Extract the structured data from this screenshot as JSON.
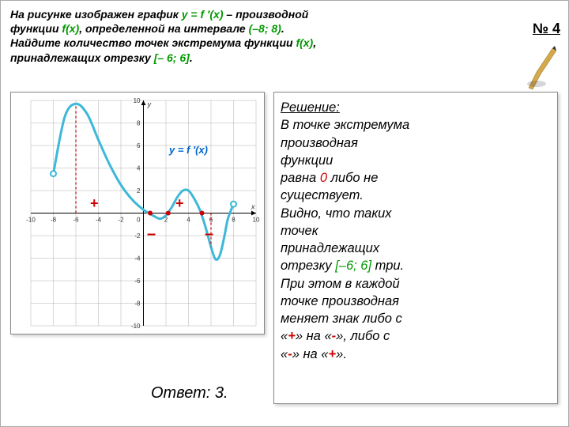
{
  "problem": {
    "line1_a": "На рисунке изображен график ",
    "line1_fn": "y = f ′(x)",
    "line1_b": " – производной",
    "line2_a": "функции  ",
    "line2_fn": "f(x)",
    "line2_b": ", определенной на интервале ",
    "line2_int": "(–8; 8)",
    "line2_c": ".",
    "line3_a": "Найдите количество точек экстремума функции ",
    "line3_fn": "f(x)",
    "line3_b": ",",
    "line4_a": "принадлежащих отрезку ",
    "line4_int": "[– 6; 6]",
    "line4_b": "."
  },
  "badge": "№ 4",
  "chart_func": "y = f ′(x)",
  "signs": {
    "p1": "+",
    "p2": "+",
    "m1": "–",
    "m2": "–"
  },
  "solution": {
    "title": "Решение:",
    "l1": "В точке экстремума",
    "l2": "производная",
    "l3": "функции",
    "l4a": "равна ",
    "l4z": "0",
    "l4b": " либо не",
    "l5": "существует.",
    "l6": "Видно, что таких",
    "l7": "точек",
    "l8": "принадлежащих",
    "l9a": "отрезку ",
    "l9i": "[–6; 6]",
    "l9b": " три.",
    "l10": "При этом в каждой",
    "l11": "точке производная",
    "l12": "меняет знак либо с",
    "l13a": "«",
    "l13p": "+",
    "l13b": "»",
    "l13c": " на «",
    "l13m": "-",
    "l13d": "»",
    "l13e": ", либо с",
    "l14a": "«",
    "l14m": "-",
    "l14b": "»",
    "l14c": " на «",
    "l14p": "+",
    "l14d": "»",
    "l14e": "."
  },
  "answer": "Ответ: 3.",
  "chart": {
    "xlim": [
      -10,
      10
    ],
    "ylim": [
      -10,
      10
    ],
    "xticks": [
      -10,
      -8,
      -6,
      -4,
      -2,
      0,
      2,
      4,
      6,
      8,
      10
    ],
    "yticks": [
      -10,
      -8,
      -6,
      -4,
      -2,
      0,
      2,
      4,
      6,
      8,
      10
    ],
    "grid_color": "#b0b0b0",
    "axis_color": "#000000",
    "curve_color": "#3db8d8",
    "curve_width": 3,
    "endpoint_color": "#3db8d8",
    "zero_point_color": "#cc0000",
    "dash_color": "#cc0000",
    "curve_points": [
      [
        -8,
        3.5
      ],
      [
        -7,
        8.5
      ],
      [
        -6,
        9.7
      ],
      [
        -5,
        8.8
      ],
      [
        -4,
        6.5
      ],
      [
        -3,
        4.3
      ],
      [
        -2,
        2.5
      ],
      [
        -1,
        1.2
      ],
      [
        0,
        0.3
      ],
      [
        1,
        -0.3
      ],
      [
        1.5,
        -0.5
      ],
      [
        2,
        -0.2
      ],
      [
        2.5,
        0.5
      ],
      [
        3,
        1.4
      ],
      [
        3.5,
        2.0
      ],
      [
        4,
        2.0
      ],
      [
        4.5,
        1.3
      ],
      [
        5,
        0.3
      ],
      [
        5.5,
        -1.2
      ],
      [
        6,
        -3
      ],
      [
        6.4,
        -4.1
      ],
      [
        6.8,
        -3.7
      ],
      [
        7.2,
        -2.0
      ],
      [
        7.5,
        -0.5
      ],
      [
        8,
        0.8
      ]
    ],
    "zeros": [
      [
        0.6,
        0
      ],
      [
        2.2,
        0
      ],
      [
        5.2,
        0
      ]
    ],
    "endpoints": [
      [
        -8,
        3.5
      ],
      [
        8,
        0.8
      ]
    ],
    "dash_x": -6
  }
}
